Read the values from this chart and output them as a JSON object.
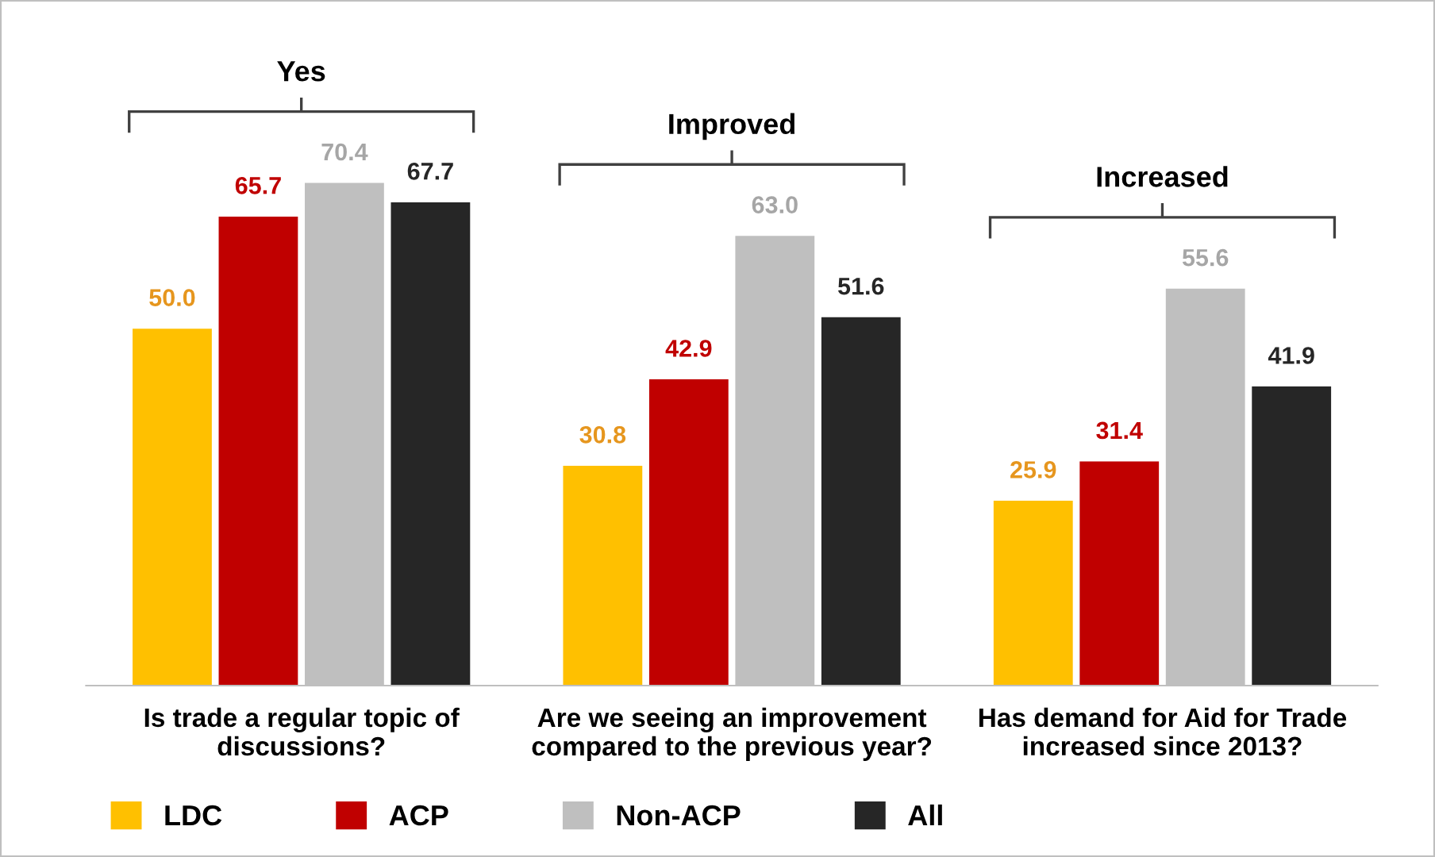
{
  "chart_data": {
    "type": "bar",
    "categories": [
      "Is trade a regular topic of\ndiscussions?",
      "Are we seeing an improvement\ncompared to the previous year?",
      "Has demand for Aid for Trade\nincreased since 2013?"
    ],
    "series": [
      {
        "name": "LDC",
        "color": "#ffc000",
        "values": [
          50.0,
          30.8,
          25.9
        ],
        "value_labels": [
          "50.0",
          "30.8",
          "25.9"
        ]
      },
      {
        "name": "ACP",
        "color": "#c00000",
        "values": [
          65.7,
          42.9,
          31.4
        ],
        "value_labels": [
          "65.7",
          "42.9",
          "31.4"
        ]
      },
      {
        "name": "Non-ACP",
        "color": "#bfbfbf",
        "values": [
          70.4,
          63.0,
          55.6
        ],
        "value_labels": [
          "70.4",
          "63.0",
          "55.6"
        ]
      },
      {
        "name": "All",
        "color": "#262626",
        "values": [
          67.7,
          51.6,
          41.9
        ],
        "value_labels": [
          "67.7",
          "51.6",
          "41.9"
        ]
      }
    ],
    "annotations": [
      "Yes",
      "Improved",
      "Increased"
    ],
    "legend": "bottom left",
    "grid": false
  }
}
